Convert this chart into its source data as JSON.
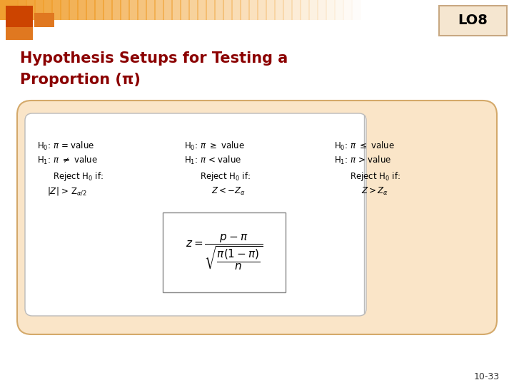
{
  "title_line1": "Hypothesis Setups for Testing a",
  "title_line2": "Proportion (π)",
  "title_color": "#8B0000",
  "bg_color": "#FFFFFF",
  "lo_label": "LO8",
  "lo_bg": "#F5E6D0",
  "lo_border": "#C8A882",
  "page_num": "10-33",
  "outer_box_fill": "#FAE5C8",
  "outer_box_edge": "#D4A96A",
  "inner_box_fill": "#FFFFFF",
  "inner_box_edge": "#CCCCCC",
  "text_color": "#000000",
  "font_size": 8.5,
  "sq1_color": "#CC4400",
  "sq2_color": "#E07820",
  "banner_color": "#F0A030"
}
